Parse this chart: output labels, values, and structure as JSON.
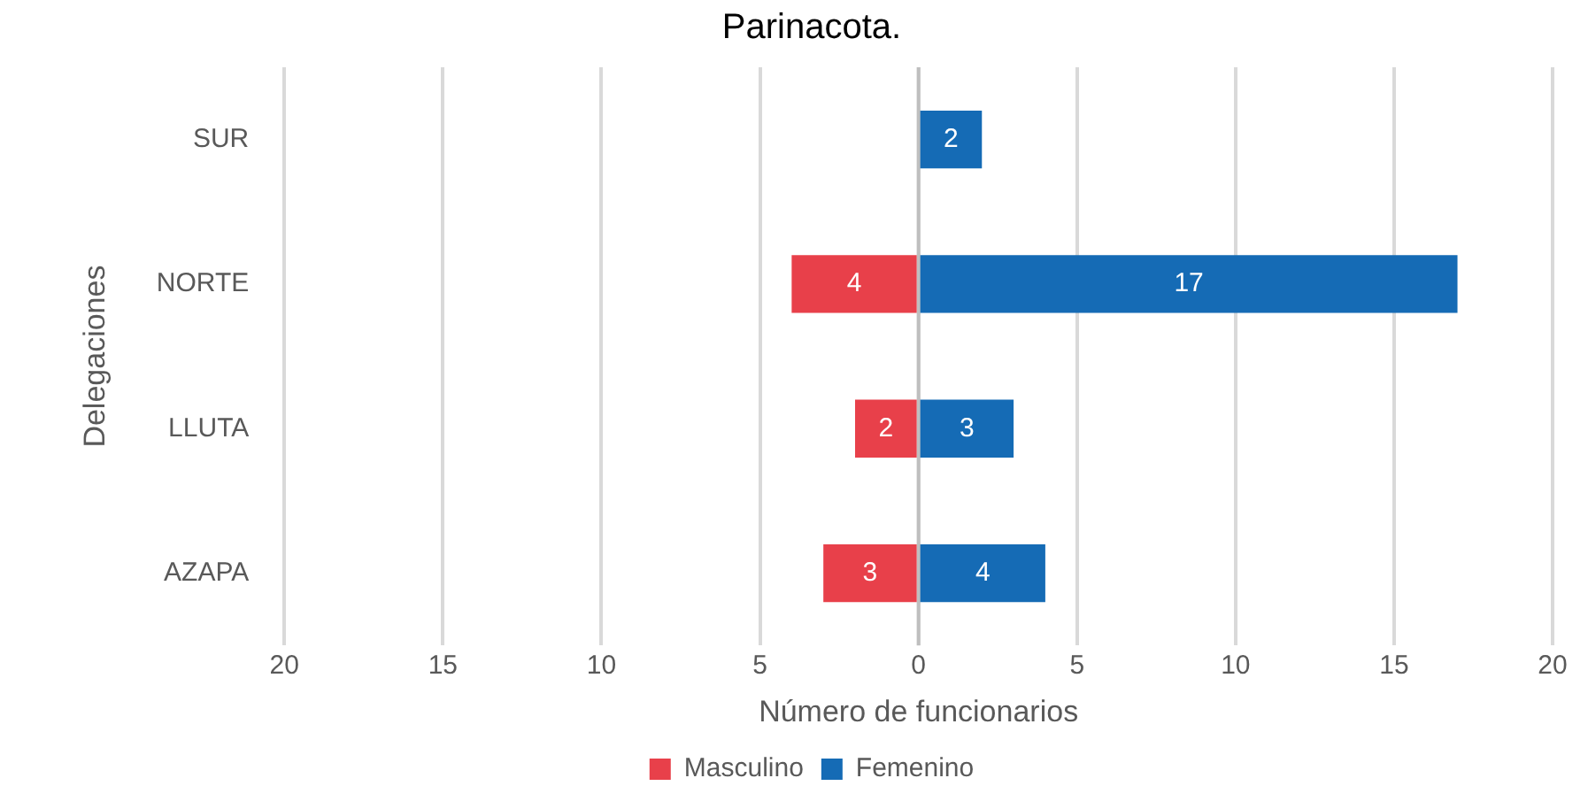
{
  "chart_data": {
    "type": "bar",
    "orientation": "horizontal",
    "title": "Parinacota.",
    "xlabel": "Número de funcionarios",
    "ylabel": "Delegaciones",
    "categories": [
      "SUR",
      "NORTE",
      "LLUTA",
      "AZAPA"
    ],
    "series": [
      {
        "name": "Masculino",
        "color": "#e8404a",
        "values": [
          null,
          4,
          2,
          3
        ],
        "base": [
          null,
          -4,
          -2,
          -3
        ],
        "value_labels": [
          null,
          "4",
          "2",
          "3"
        ]
      },
      {
        "name": "Femenino",
        "color": "#156bb5",
        "values": [
          2,
          17,
          3,
          4
        ],
        "value_labels": [
          "2",
          "17",
          "3",
          "4"
        ]
      }
    ],
    "xlim": [
      -20,
      20
    ],
    "xticks": [
      {
        "value": -20,
        "label": "20"
      },
      {
        "value": -15,
        "label": "15"
      },
      {
        "value": -10,
        "label": "10"
      },
      {
        "value": -5,
        "label": "5"
      },
      0,
      5,
      10,
      15,
      20
    ],
    "grid": "x",
    "legend": "bottom"
  }
}
